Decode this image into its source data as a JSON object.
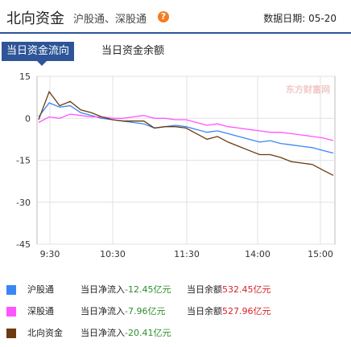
{
  "header": {
    "title": "北向资金",
    "subtitle": "沪股通、深股通",
    "date_label": "数据日期:",
    "date_value": "05-20"
  },
  "tabs": [
    {
      "label": "当日资金流向",
      "active": true
    },
    {
      "label": "当日资金余额",
      "active": false
    }
  ],
  "watermark": "东方财富网",
  "colors": {
    "accent": "#2d5597",
    "hgt": "#3a86f5",
    "sgt": "#ff55ff",
    "north": "#6b3a10",
    "flow_value": "#2b8f2b",
    "balance_value": "#d8232a"
  },
  "legend": [
    {
      "name": "沪股通",
      "flow_label": "当日净流入",
      "flow_value": "-12.45亿元",
      "balance_label": "当日余额",
      "balance_value": "532.45亿元",
      "color": "#3a86f5"
    },
    {
      "name": "深股通",
      "flow_label": "当日净流入",
      "flow_value": "-7.96亿元",
      "balance_label": "当日余额",
      "balance_value": "527.96亿元",
      "color": "#ff55ff"
    },
    {
      "name": "北向资金",
      "flow_label": "当日净流入",
      "flow_value": "-20.41亿元",
      "balance_label": "",
      "balance_value": "",
      "color": "#6b3a10"
    }
  ],
  "chart_data": {
    "type": "line",
    "x_ticks": [
      "9:30",
      "10:30",
      "11:30",
      "14:00",
      "15:00"
    ],
    "y_ticks": [
      15,
      0,
      -15,
      -30,
      -45
    ],
    "ylim": [
      -45,
      15
    ],
    "grid": true,
    "series": [
      {
        "name": "沪股通",
        "color": "#3a86f5",
        "values": [
          0.5,
          5.5,
          4.0,
          4.5,
          2.0,
          1.0,
          0.0,
          -0.5,
          -1.0,
          -1.5,
          -2.0,
          -3.5,
          -3.0,
          -2.5,
          -3.0,
          -4.0,
          -5.0,
          -4.5,
          -5.5,
          -6.5,
          -7.5,
          -8.5,
          -8.0,
          -9.0,
          -9.5,
          -10.0,
          -10.5,
          -11.5,
          -12.45
        ]
      },
      {
        "name": "深股通",
        "color": "#ff55ff",
        "values": [
          -1.5,
          0.5,
          0.0,
          1.5,
          1.0,
          0.5,
          0.5,
          0.0,
          0.0,
          0.5,
          1.0,
          0.0,
          0.0,
          -0.5,
          -0.5,
          -1.5,
          -2.5,
          -2.0,
          -3.0,
          -3.5,
          -4.0,
          -4.5,
          -5.0,
          -5.0,
          -5.5,
          -6.0,
          -6.5,
          -7.0,
          -7.96
        ]
      },
      {
        "name": "北向资金",
        "color": "#6b3a10",
        "values": [
          -0.5,
          9.5,
          4.5,
          6.0,
          3.0,
          2.0,
          0.5,
          -0.5,
          -1.0,
          -1.0,
          -1.0,
          -3.5,
          -3.0,
          -3.0,
          -3.5,
          -5.5,
          -7.5,
          -6.5,
          -8.5,
          -10.0,
          -11.5,
          -13.0,
          -13.0,
          -14.0,
          -15.5,
          -16.0,
          -16.5,
          -18.5,
          -20.41
        ]
      }
    ]
  }
}
